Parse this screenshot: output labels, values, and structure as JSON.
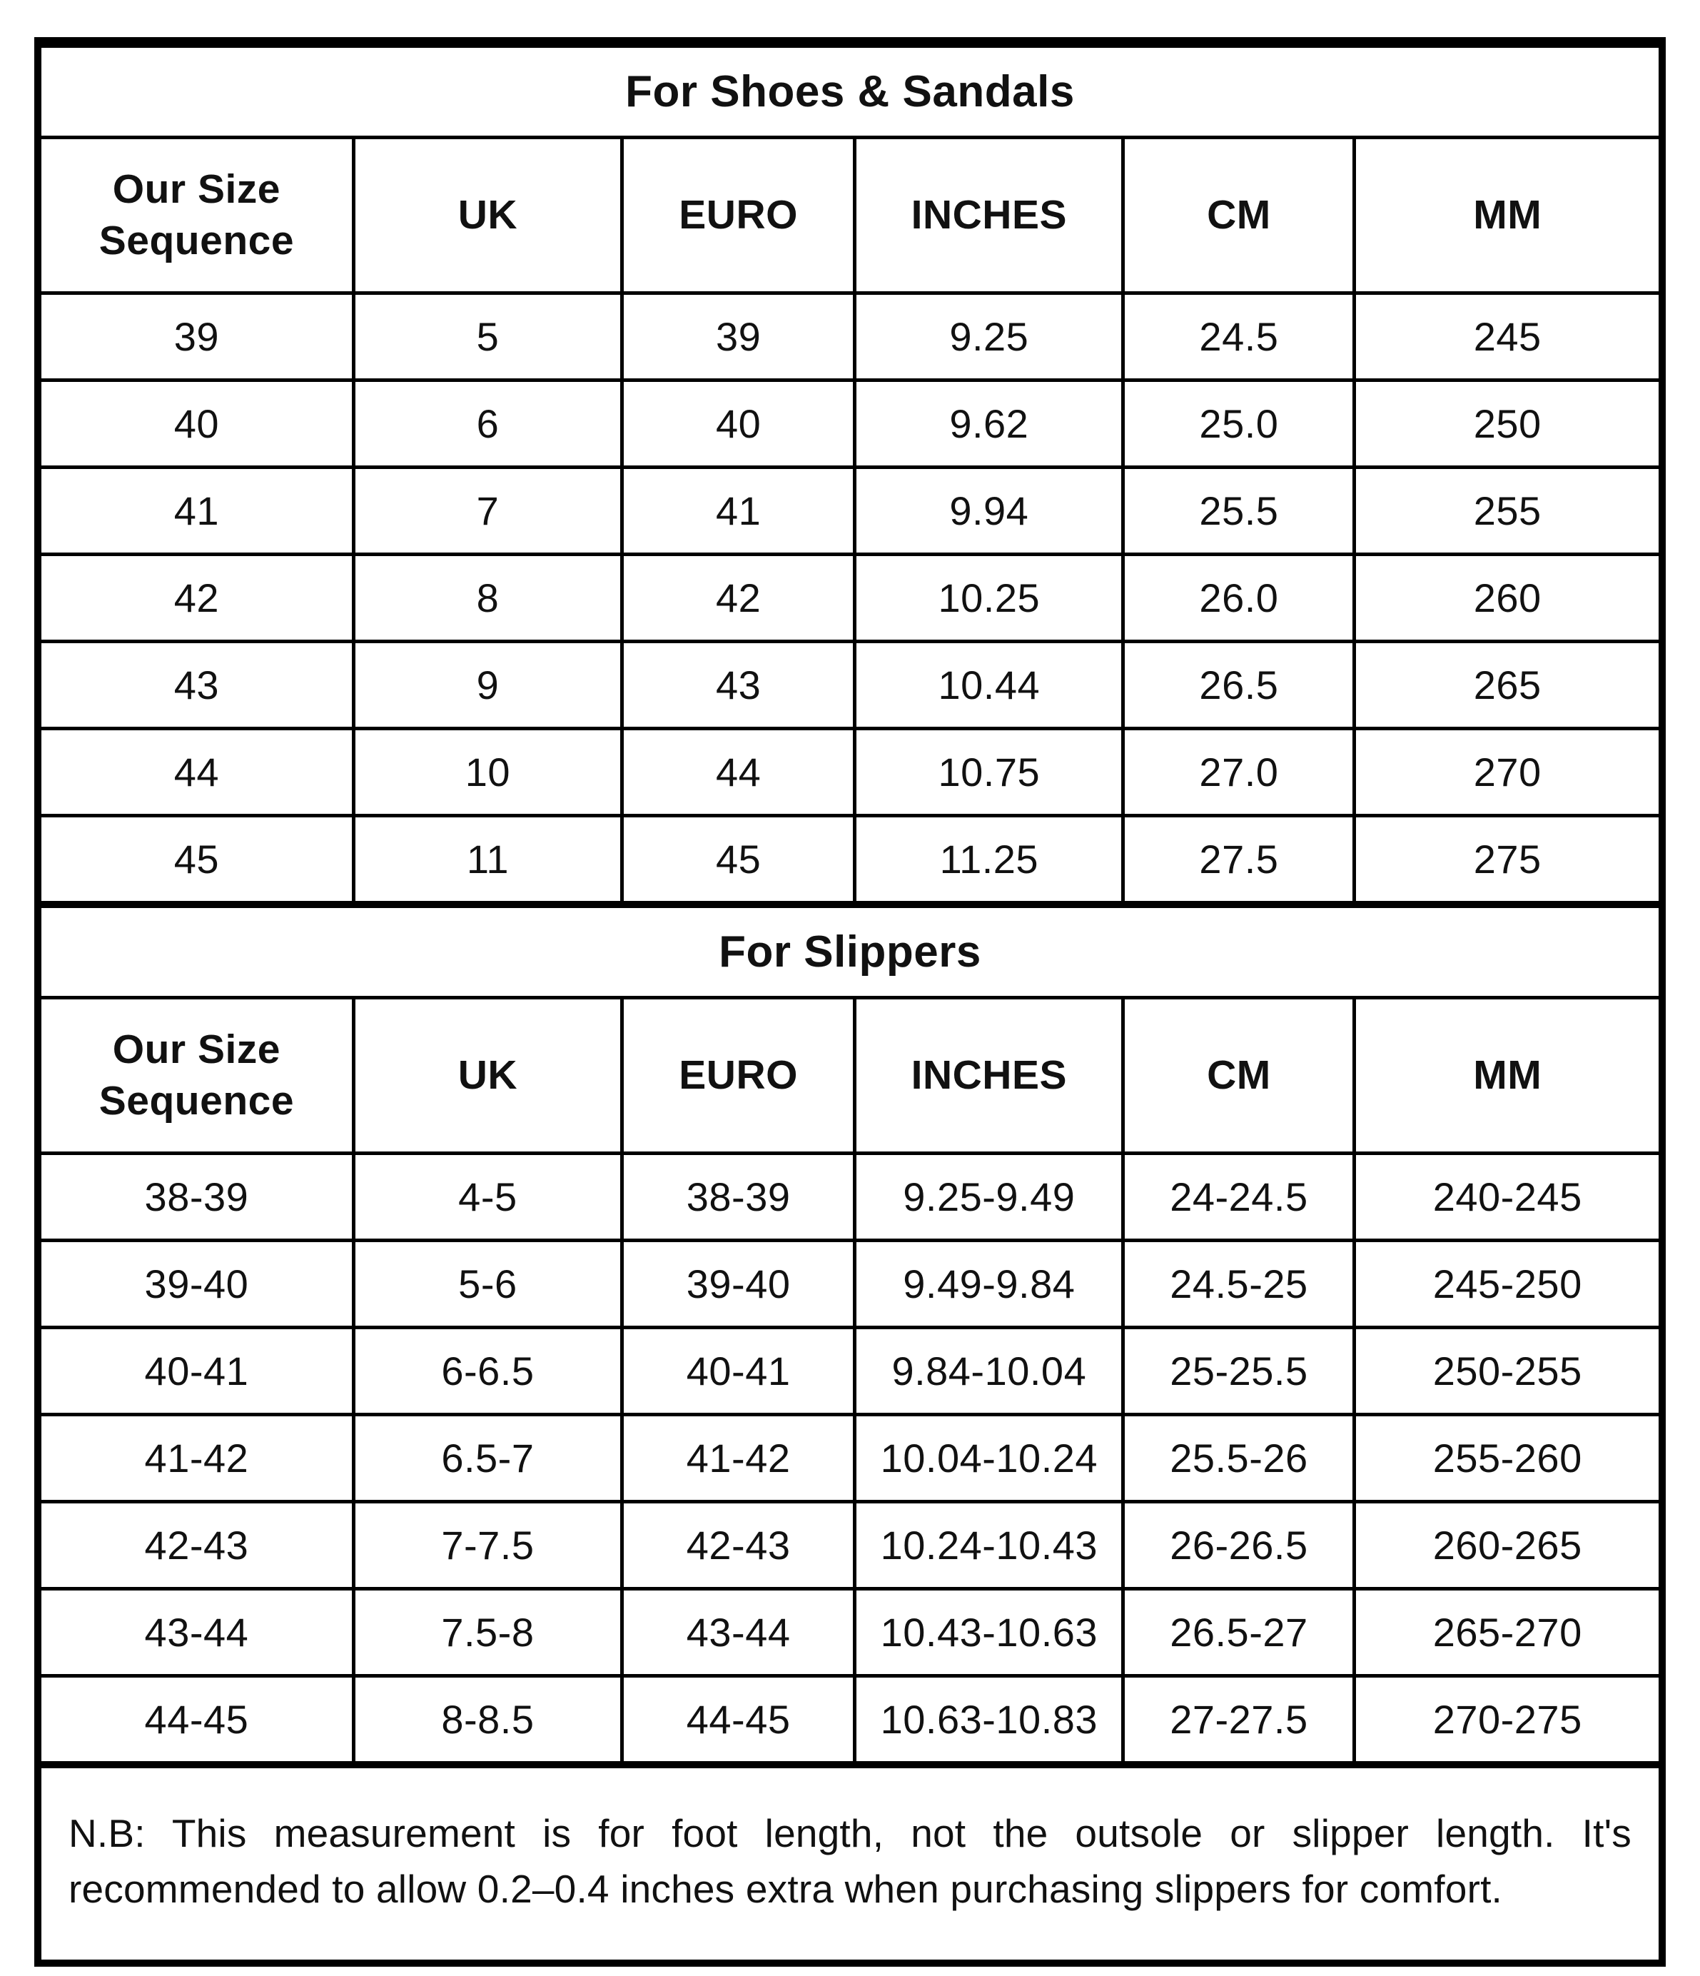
{
  "tables": [
    {
      "title": "For Shoes & Sandals",
      "headers": [
        "Our Size Sequence",
        "UK",
        "EURO",
        "INCHES",
        "CM",
        "MM"
      ],
      "rows": [
        [
          "39",
          "5",
          "39",
          "9.25",
          "24.5",
          "245"
        ],
        [
          "40",
          "6",
          "40",
          "9.62",
          "25.0",
          "250"
        ],
        [
          "41",
          "7",
          "41",
          "9.94",
          "25.5",
          "255"
        ],
        [
          "42",
          "8",
          "42",
          "10.25",
          "26.0",
          "260"
        ],
        [
          "43",
          "9",
          "43",
          "10.44",
          "26.5",
          "265"
        ],
        [
          "44",
          "10",
          "44",
          "10.75",
          "27.0",
          "270"
        ],
        [
          "45",
          "11",
          "45",
          "11.25",
          "27.5",
          "275"
        ]
      ]
    },
    {
      "title": "For Slippers",
      "headers": [
        "Our Size Sequence",
        "UK",
        "EURO",
        "INCHES",
        "CM",
        "MM"
      ],
      "rows": [
        [
          "38-39",
          "4-5",
          "38-39",
          "9.25-9.49",
          "24-24.5",
          "240-245"
        ],
        [
          "39-40",
          "5-6",
          "39-40",
          "9.49-9.84",
          "24.5-25",
          "245-250"
        ],
        [
          "40-41",
          "6-6.5",
          "40-41",
          "9.84-10.04",
          "25-25.5",
          "250-255"
        ],
        [
          "41-42",
          "6.5-7",
          "41-42",
          "10.04-10.24",
          "25.5-26",
          "255-260"
        ],
        [
          "42-43",
          "7-7.5",
          "42-43",
          "10.24-10.43",
          "26-26.5",
          "260-265"
        ],
        [
          "43-44",
          "7.5-8",
          "43-44",
          "10.43-10.63",
          "26.5-27",
          "265-270"
        ],
        [
          "44-45",
          "8-8.5",
          "44-45",
          "10.63-10.83",
          "27-27.5",
          "270-275"
        ]
      ]
    }
  ],
  "note": {
    "text": "N.B: This measurement is for foot length, not the outsole or slipper length. It's recommended to allow 0.2–0.4 inches extra when purchasing slippers for comfort."
  },
  "colors": {
    "background": "#ffffff",
    "border": "#000000",
    "text": "#111111"
  }
}
